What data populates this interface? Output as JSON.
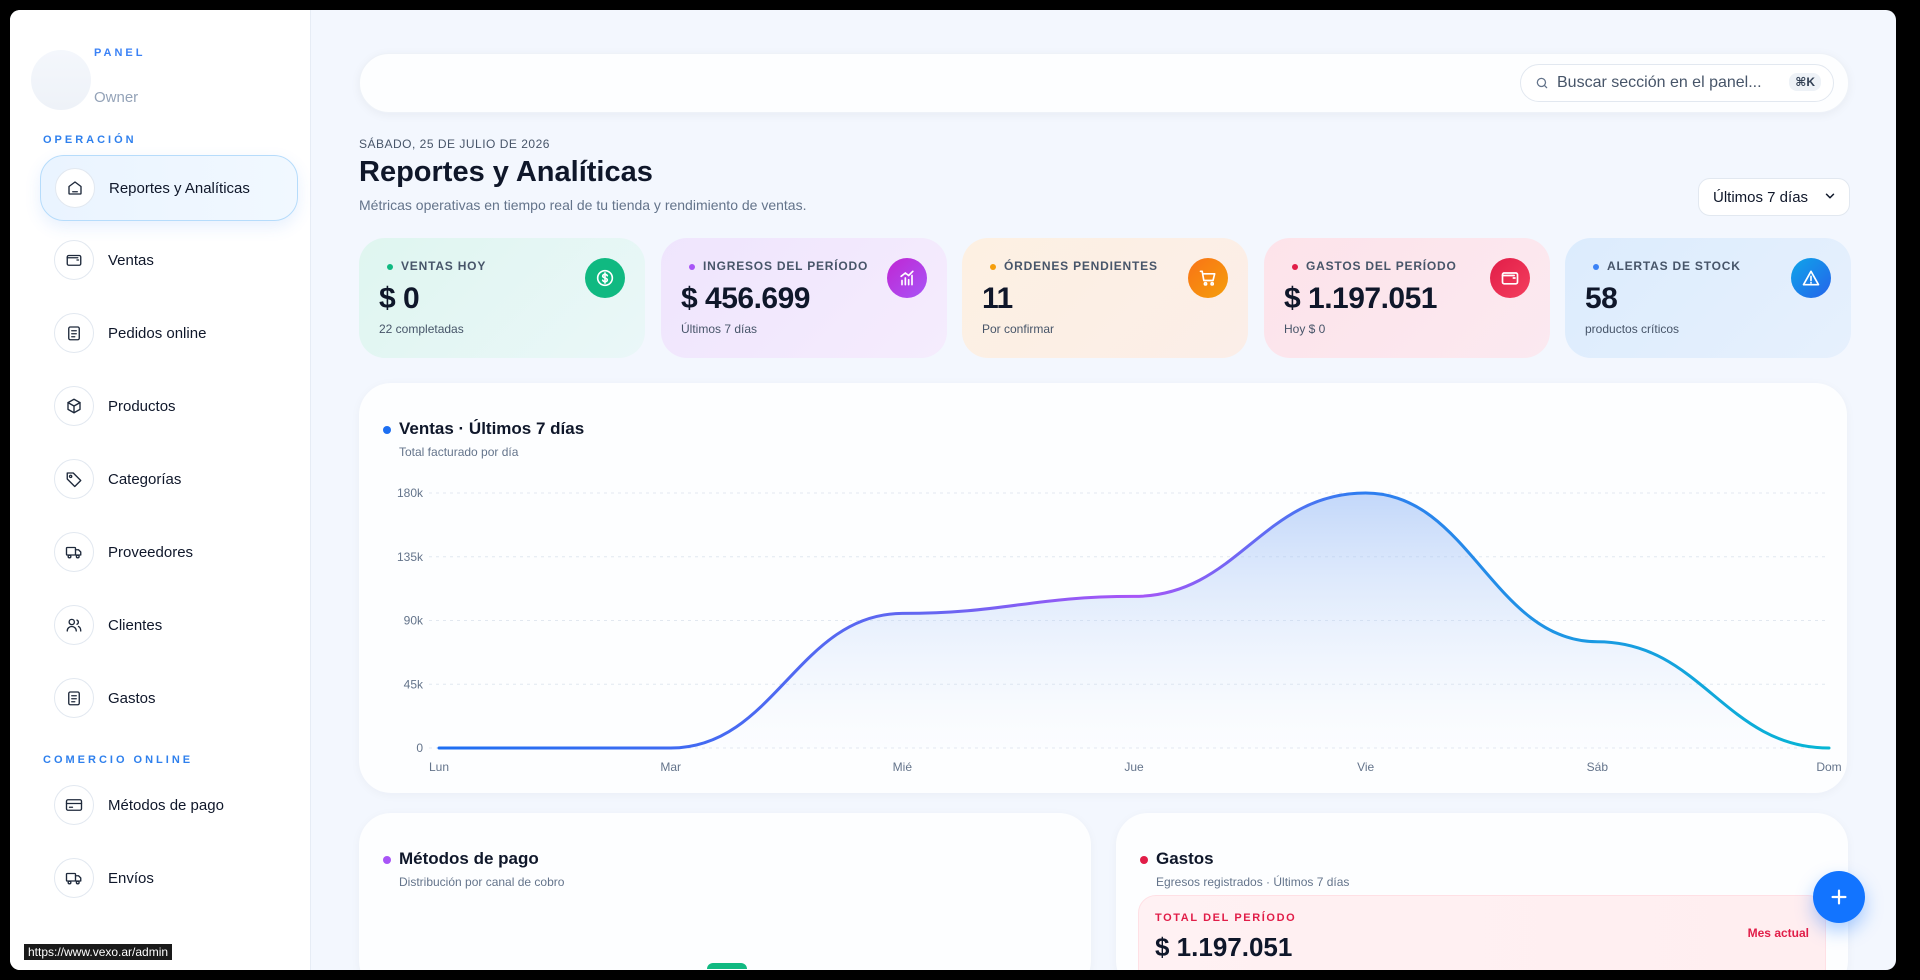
{
  "sidebar": {
    "brand_label": "PANEL",
    "role": "Owner",
    "sections": [
      {
        "label": "OPERACIÓN"
      },
      {
        "label": "COMERCIO ONLINE"
      }
    ],
    "items": [
      {
        "label": "Reportes y Analíticas",
        "icon": "home-icon",
        "active": true
      },
      {
        "label": "Ventas",
        "icon": "wallet-icon"
      },
      {
        "label": "Pedidos online",
        "icon": "clipboard-icon"
      },
      {
        "label": "Productos",
        "icon": "box-icon"
      },
      {
        "label": "Categorías",
        "icon": "tag-icon"
      },
      {
        "label": "Proveedores",
        "icon": "truck-icon"
      },
      {
        "label": "Clientes",
        "icon": "users-icon"
      },
      {
        "label": "Gastos",
        "icon": "receipt-icon"
      },
      {
        "label": "Métodos de pago",
        "icon": "credit-card-icon"
      },
      {
        "label": "Envíos",
        "icon": "truck-icon"
      }
    ],
    "status_url": "https://www.vexo.ar/admin"
  },
  "topbar": {
    "search_text": "Buscar sección en el panel...",
    "shortcut": "⌘K"
  },
  "header": {
    "date": "SÁBADO, 25 DE JULIO DE 2026",
    "title": "Reportes y Analíticas",
    "subtitle": "Métricas operativas en tiempo real de tu tienda y rendimiento de ventas.",
    "range": "Últimos 7 días"
  },
  "kpis": [
    {
      "label": "VENTAS HOY",
      "value": "$ 0",
      "sub": "22 completadas",
      "icon": "dollar-icon",
      "accent": "#10b981"
    },
    {
      "label": "INGRESOS DEL PERÍODO",
      "value": "$ 456.699",
      "sub": "Últimos 7 días",
      "icon": "bar-chart-icon",
      "accent": "#a855f7"
    },
    {
      "label": "ÓRDENES PENDIENTES",
      "value": "11",
      "sub": "Por confirmar",
      "icon": "cart-icon",
      "accent": "#f59e0b"
    },
    {
      "label": "GASTOS DEL PERÍODO",
      "value": "$ 1.197.051",
      "sub": "Hoy $ 0",
      "icon": "wallet-icon",
      "accent": "#e11d48"
    },
    {
      "label": "ALERTAS DE STOCK",
      "value": "58",
      "sub": "productos críticos",
      "icon": "warning-icon",
      "accent": "#3b82f6"
    }
  ],
  "sales_card": {
    "title": "Ventas · Últimos 7 días",
    "subtitle": "Total facturado por día"
  },
  "chart_data": {
    "type": "area",
    "categories": [
      "Lun",
      "Mar",
      "Mié",
      "Jue",
      "Vie",
      "Sáb",
      "Dom"
    ],
    "values": [
      0,
      0,
      95000,
      107000,
      180000,
      75000,
      0
    ],
    "yticks": [
      "180k",
      "135k",
      "90k",
      "45k",
      "0"
    ],
    "ylim": [
      0,
      180000
    ],
    "grid": true
  },
  "payments_card": {
    "title": "Métodos de pago",
    "subtitle": "Distribución por canal de cobro"
  },
  "expenses_card": {
    "title": "Gastos",
    "subtitle": "Egresos registrados · Últimos 7 días",
    "total_label": "TOTAL DEL PERÍODO",
    "total_value": "$ 1.197.051",
    "month_label": "Mes actual"
  }
}
